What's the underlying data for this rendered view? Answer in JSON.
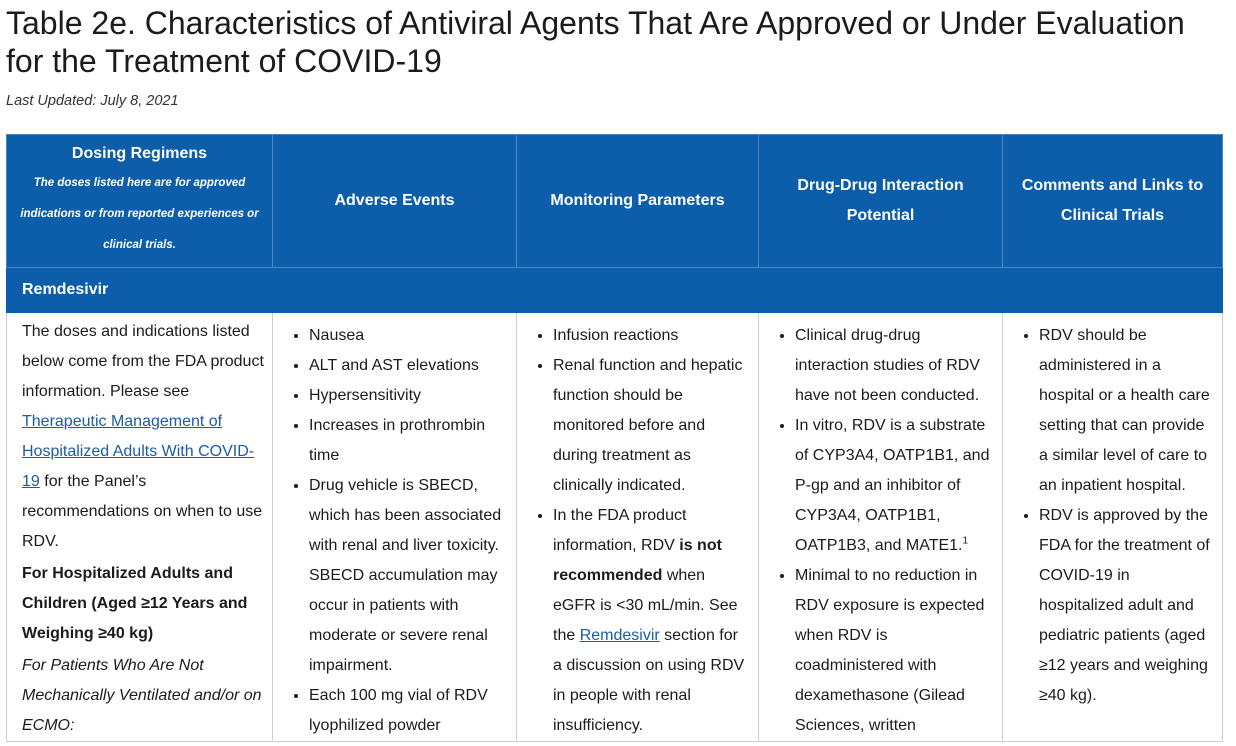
{
  "page": {
    "title": "Table 2e. Characteristics of Antiviral Agents That Are Approved or Under Evaluation for the Treatment of COVID-19",
    "last_updated": "Last Updated: July 8, 2021"
  },
  "table": {
    "headers": {
      "dosing": "Dosing Regimens",
      "dosing_note": "The doses listed here are for approved indications or from reported experiences or clinical trials.",
      "adverse": "Adverse Events",
      "monitoring": "Monitoring Parameters",
      "ddi": "Drug-Drug Interaction Potential",
      "comments": "Comments and Links to Clinical Trials"
    },
    "section": "Remdesivir",
    "dosing": {
      "intro_1": "The doses and indications listed below come from the FDA product information. Please see ",
      "link": "Therapeutic Management of Hospitalized Adults With COVID-19",
      "intro_2": " for the Panel’s recommendations on when to use RDV.",
      "population": "For Hospitalized Adults and Children (Aged ≥12 Years and Weighing ≥40 kg)",
      "subgroup": "For Patients Who Are Not Mechanically Ventilated and/or on ECMO:"
    },
    "adverse": [
      "Nausea",
      "ALT and AST elevations",
      "Hypersensitivity",
      "Increases in prothrombin time",
      "Drug vehicle is SBECD, which has been associated with renal and liver toxicity. SBECD accumulation may occur in patients with moderate or severe renal impairment.",
      "Each 100 mg vial of RDV lyophilized powder"
    ],
    "monitoring": {
      "item_1": "Infusion reactions",
      "item_2": "Renal function and hepatic function should be monitored before and during treatment as clinically indicated.",
      "item_3_a": "In the FDA product information, RDV ",
      "item_3_b": "is not recommended",
      "item_3_c": " when eGFR is <30 mL/min. See the ",
      "item_3_link": "Remdesivir",
      "item_3_d": " section for a discussion on using RDV in people with renal insufficiency."
    },
    "ddi": {
      "item_1": "Clinical drug-drug interaction studies of RDV have not been conducted.",
      "item_2": "In vitro, RDV is a substrate of CYP3A4, OATP1B1, and P-gp and an inhibitor of CYP3A4, OATP1B1, OATP1B3, and MATE1.",
      "item_2_sup": "1",
      "item_3": "Minimal to no reduction in RDV exposure is expected when RDV is coadministered with dexamethasone (Gilead Sciences, written"
    },
    "comments": [
      "RDV should be administered in a hospital or a health care setting that can provide a similar level of care to an inpatient hospital.",
      "RDV is approved by the FDA for the treatment of COVID-19 in hospitalized adult and pediatric patients (aged ≥12 years and weighing ≥40 kg)."
    ]
  },
  "colors": {
    "header_bg": "#0c5eaa",
    "link": "#1a5ca8",
    "border": "#cfcfcf"
  }
}
